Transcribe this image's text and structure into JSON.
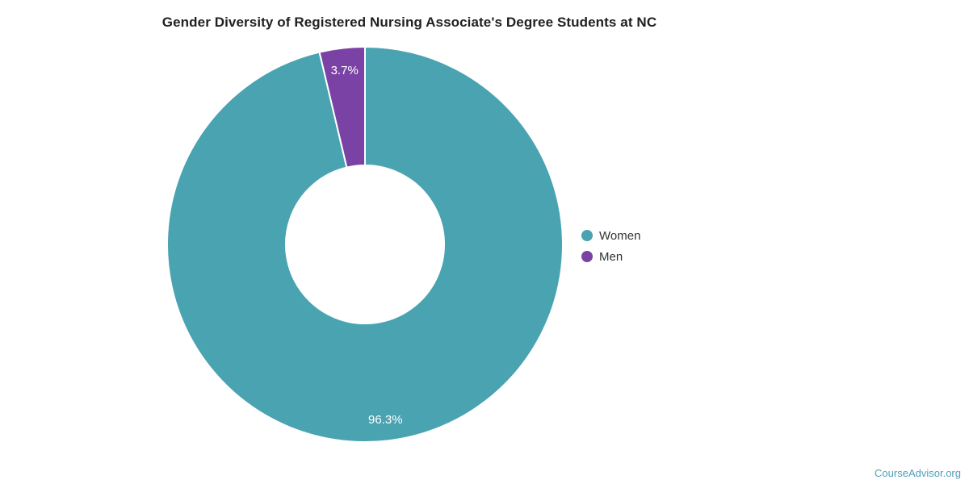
{
  "credit": "CourseAdvisor.org",
  "colors": {
    "background": "#FFFFFF",
    "women": "#4AA3B1",
    "men": "#7B42A6",
    "slice_border": "#FFFFFF",
    "label_text": "#FFFFFF",
    "title_text": "#212121",
    "legend_text": "#333333",
    "credit_text": "#4EA0BA"
  },
  "chart_data": {
    "type": "pie",
    "subtype": "donut",
    "title": "Gender Diversity of Registered Nursing Associate's Degree Students at NC",
    "start_angle_deg": 0,
    "inner_radius_ratio": 0.4,
    "grid": false,
    "legend_position": "right-middle",
    "series": [
      {
        "name": "Women",
        "value": 96.3,
        "label": "96.3%",
        "color": "#4AA3B1"
      },
      {
        "name": "Men",
        "value": 3.7,
        "label": "3.7%",
        "color": "#7B42A6"
      }
    ]
  }
}
